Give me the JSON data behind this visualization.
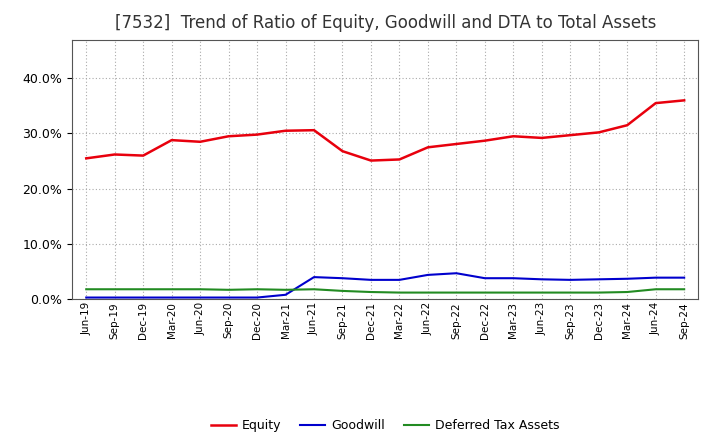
{
  "title": "[7532]  Trend of Ratio of Equity, Goodwill and DTA to Total Assets",
  "x_labels": [
    "Jun-19",
    "Sep-19",
    "Dec-19",
    "Mar-20",
    "Jun-20",
    "Sep-20",
    "Dec-20",
    "Mar-21",
    "Jun-21",
    "Sep-21",
    "Dec-21",
    "Mar-22",
    "Jun-22",
    "Sep-22",
    "Dec-22",
    "Mar-23",
    "Jun-23",
    "Sep-23",
    "Dec-23",
    "Mar-24",
    "Jun-24",
    "Sep-24"
  ],
  "equity": [
    25.5,
    26.2,
    26.0,
    28.8,
    28.5,
    29.5,
    29.8,
    30.5,
    30.6,
    26.8,
    25.1,
    25.3,
    27.5,
    28.1,
    28.7,
    29.5,
    29.2,
    29.7,
    30.2,
    31.5,
    35.5,
    36.0
  ],
  "goodwill": [
    0.3,
    0.3,
    0.3,
    0.3,
    0.3,
    0.3,
    0.3,
    0.8,
    4.0,
    3.8,
    3.5,
    3.5,
    4.4,
    4.7,
    3.8,
    3.8,
    3.6,
    3.5,
    3.6,
    3.7,
    3.9,
    3.9
  ],
  "dta": [
    1.8,
    1.8,
    1.8,
    1.8,
    1.8,
    1.7,
    1.8,
    1.7,
    1.8,
    1.5,
    1.3,
    1.2,
    1.2,
    1.2,
    1.2,
    1.2,
    1.2,
    1.2,
    1.2,
    1.3,
    1.8,
    1.8
  ],
  "equity_color": "#e8000d",
  "goodwill_color": "#0000cd",
  "dta_color": "#228b22",
  "ylim": [
    0,
    47
  ],
  "yticks": [
    0.0,
    10.0,
    20.0,
    30.0,
    40.0
  ],
  "background_color": "#ffffff",
  "plot_bg_color": "#ffffff",
  "grid_color": "#aaaaaa",
  "title_fontsize": 12,
  "legend_labels": [
    "Equity",
    "Goodwill",
    "Deferred Tax Assets"
  ]
}
